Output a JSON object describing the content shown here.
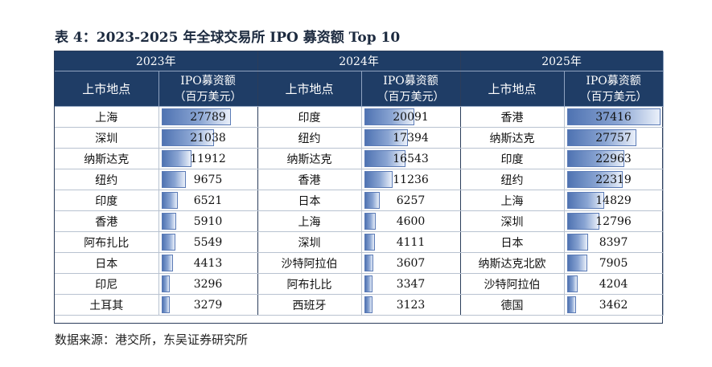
{
  "caption": "表 4：2023-2025 年全球交易所 IPO 募资额 Top 10",
  "source": "数据来源：港交所，东吴证券研究所",
  "header": {
    "years": [
      "2023年",
      "2024年",
      "2025年"
    ],
    "location_label": "上市地点",
    "value_label_line1": "IPO募资额",
    "value_label_line2": "（百万美元）"
  },
  "bar_max": 37416,
  "rows": [
    {
      "y2023_loc": "上海",
      "y2023_val": 27789,
      "y2024_loc": "印度",
      "y2024_val": 20091,
      "y2025_loc": "香港",
      "y2025_val": 37416
    },
    {
      "y2023_loc": "深圳",
      "y2023_val": 21038,
      "y2024_loc": "纽约",
      "y2024_val": 17394,
      "y2025_loc": "纳斯达克",
      "y2025_val": 27757
    },
    {
      "y2023_loc": "纳斯达克",
      "y2023_val": 11912,
      "y2024_loc": "纳斯达克",
      "y2024_val": 16543,
      "y2025_loc": "印度",
      "y2025_val": 22963
    },
    {
      "y2023_loc": "纽约",
      "y2023_val": 9675,
      "y2024_loc": "香港",
      "y2024_val": 11236,
      "y2025_loc": "纽约",
      "y2025_val": 22319
    },
    {
      "y2023_loc": "印度",
      "y2023_val": 6521,
      "y2024_loc": "日本",
      "y2024_val": 6257,
      "y2025_loc": "上海",
      "y2025_val": 14829
    },
    {
      "y2023_loc": "香港",
      "y2023_val": 5910,
      "y2024_loc": "上海",
      "y2024_val": 4600,
      "y2025_loc": "深圳",
      "y2025_val": 12796
    },
    {
      "y2023_loc": "阿布扎比",
      "y2023_val": 5549,
      "y2024_loc": "深圳",
      "y2024_val": 4111,
      "y2025_loc": "日本",
      "y2025_val": 8397
    },
    {
      "y2023_loc": "日本",
      "y2023_val": 4413,
      "y2024_loc": "沙特阿拉伯",
      "y2024_val": 3607,
      "y2025_loc": "纳斯达克北欧",
      "y2025_val": 7905
    },
    {
      "y2023_loc": "印尼",
      "y2023_val": 3296,
      "y2024_loc": "阿布扎比",
      "y2024_val": 3347,
      "y2025_loc": "沙特阿拉伯",
      "y2025_val": 4204
    },
    {
      "y2023_loc": "土耳其",
      "y2023_val": 3279,
      "y2024_loc": "西班牙",
      "y2024_val": 3123,
      "y2025_loc": "德国",
      "y2025_val": 3462
    }
  ]
}
